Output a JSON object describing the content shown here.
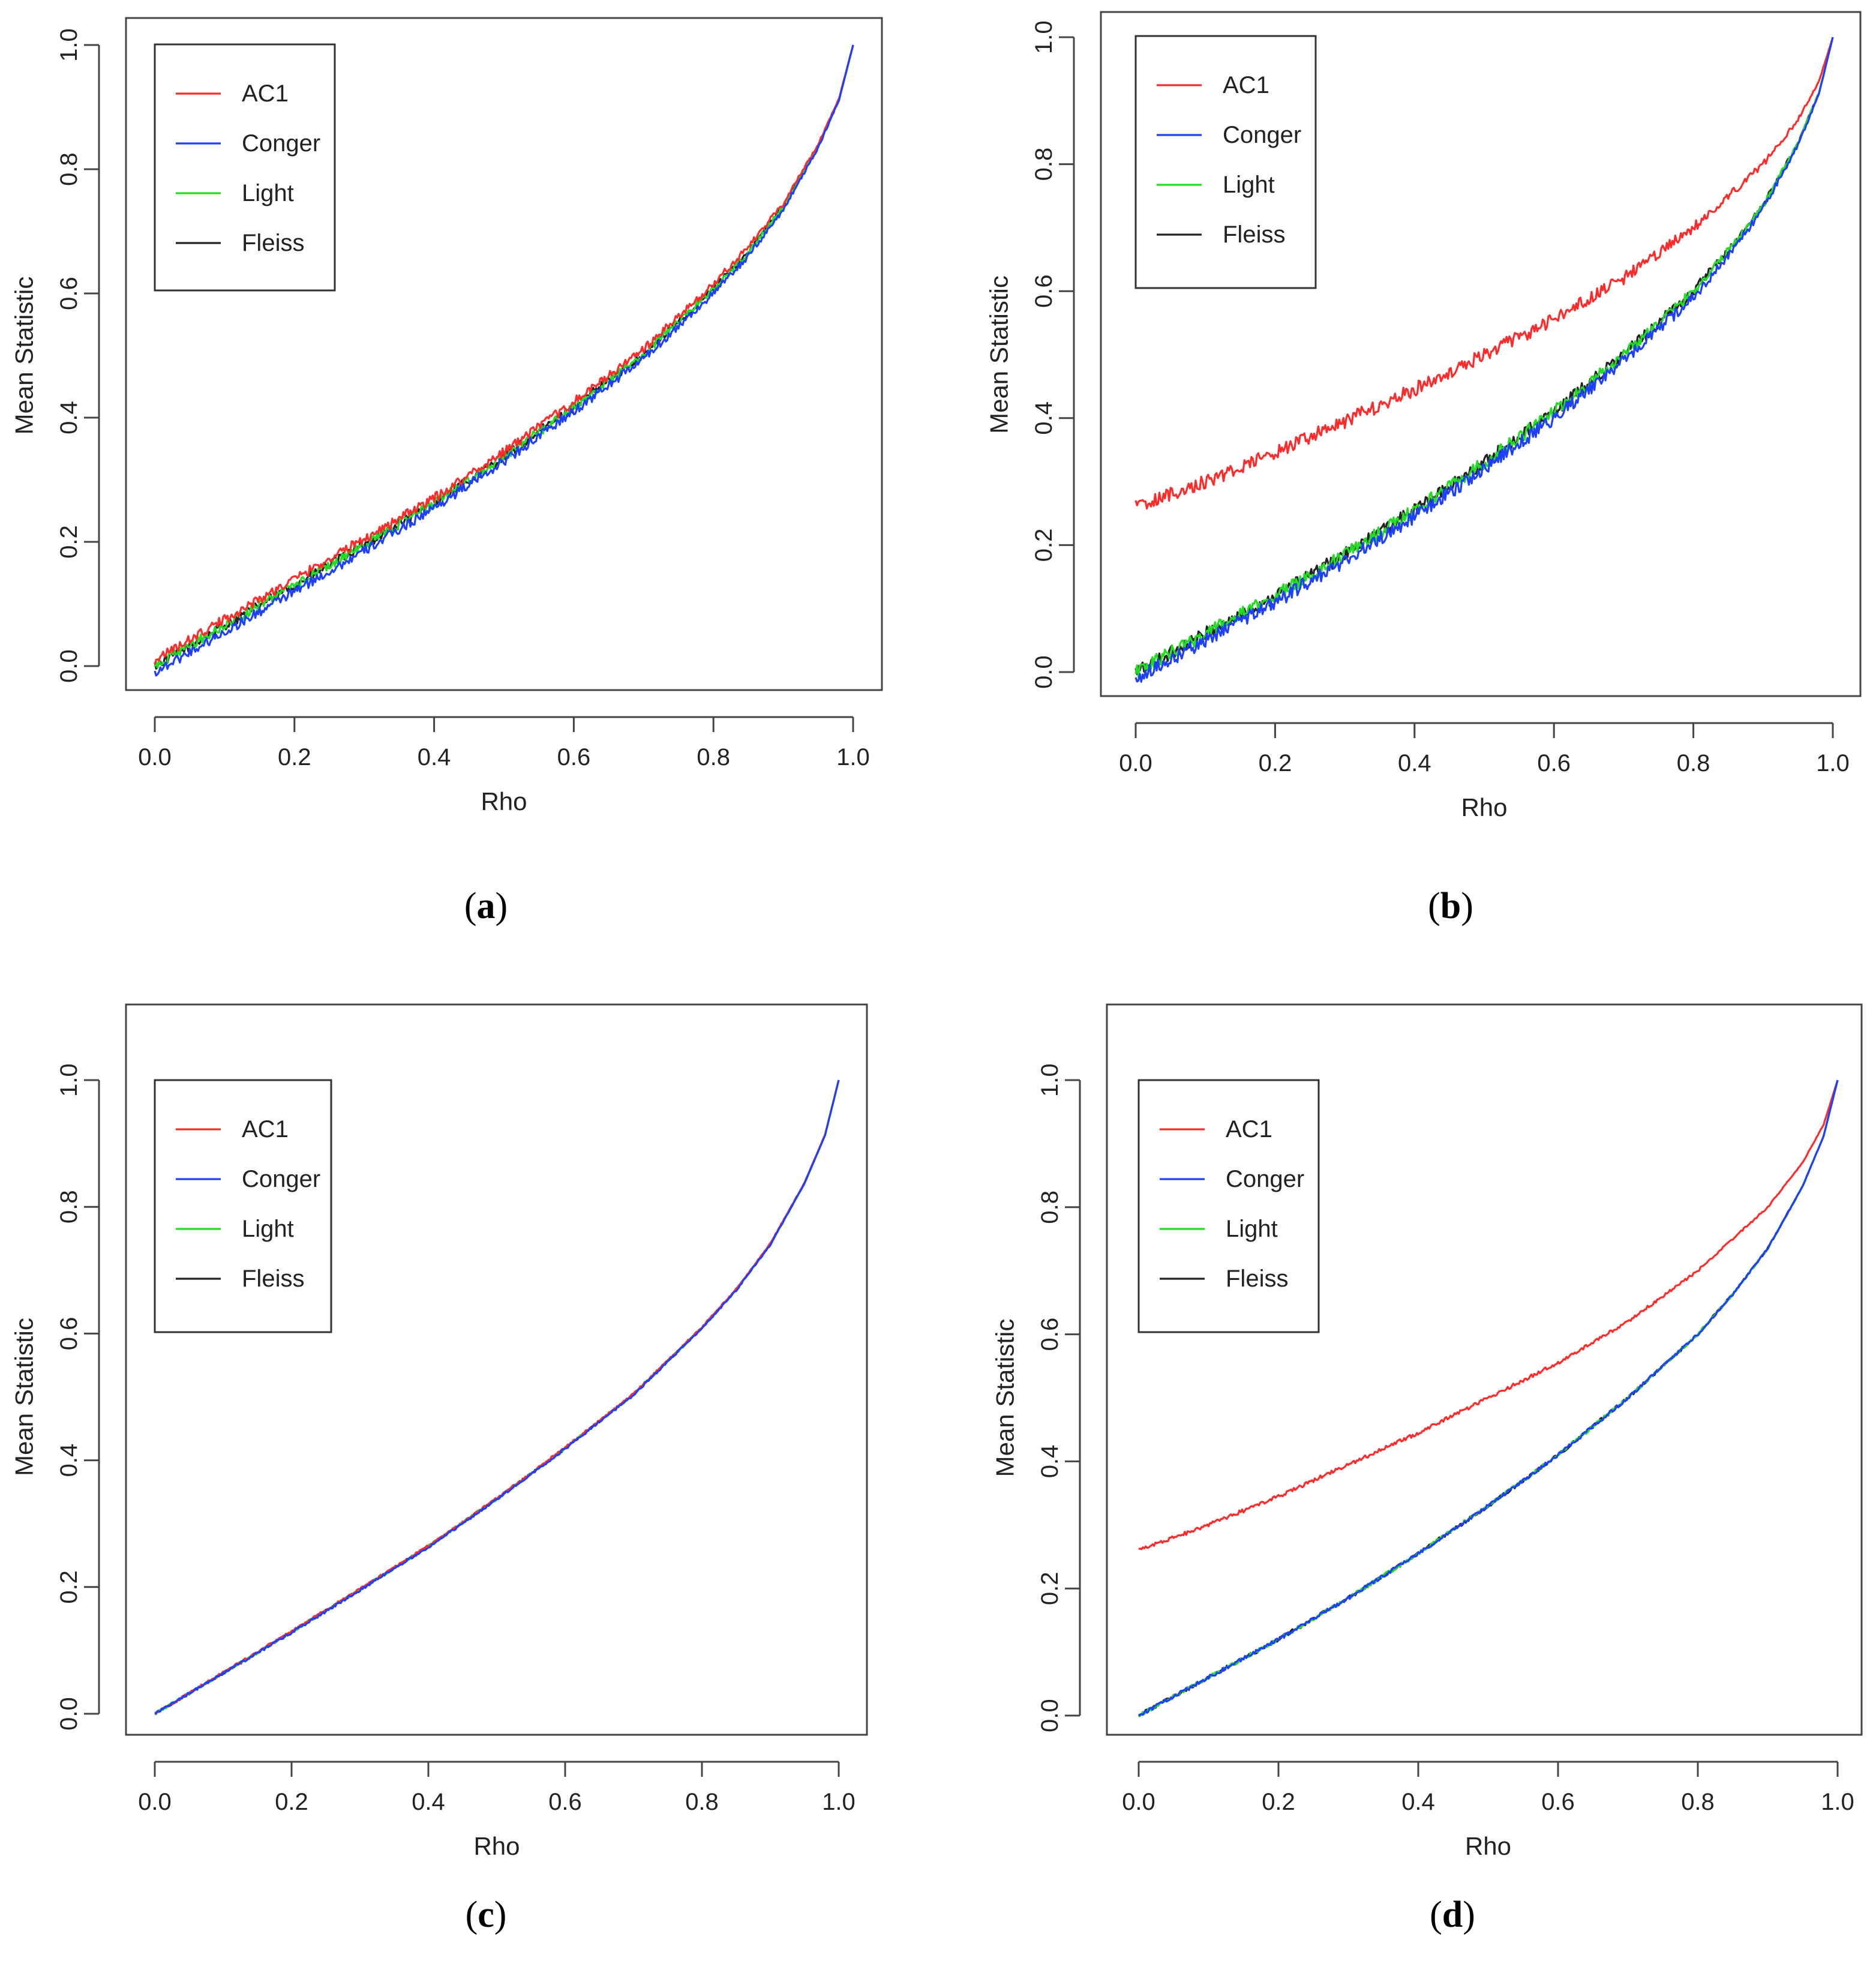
{
  "figure": {
    "panels": [
      {
        "caption_letter": "a",
        "caption_open": "(",
        "caption_close": ")"
      },
      {
        "caption_letter": "b",
        "caption_open": "(",
        "caption_close": ")"
      },
      {
        "caption_letter": "c",
        "caption_open": "(",
        "caption_close": ")"
      },
      {
        "caption_letter": "d",
        "caption_open": "(",
        "caption_close": ")"
      }
    ]
  },
  "colors": {
    "AC1": "#ff2a2a",
    "Conger": "#1f3fff",
    "Light": "#22dd22",
    "Fleiss": "#222222"
  },
  "chart_data": [
    {
      "type": "line",
      "panel": "a",
      "noise": 0.008,
      "xlabel": "Rho",
      "ylabel": "Mean Statistic",
      "xlim": [
        0,
        1
      ],
      "ylim": [
        0,
        1
      ],
      "xticks": [
        "0.0",
        "0.2",
        "0.4",
        "0.6",
        "0.8",
        "1.0"
      ],
      "yticks": [
        "0.0",
        "0.2",
        "0.4",
        "0.6",
        "0.8",
        "1.0"
      ],
      "legend": [
        "AC1",
        "Conger",
        "Light",
        "Fleiss"
      ],
      "legend_position": "top-left",
      "x": [
        0,
        0.1,
        0.2,
        0.3,
        0.4,
        0.5,
        0.6,
        0.7,
        0.8,
        0.85,
        0.9,
        0.95,
        0.98,
        1.0
      ],
      "series": [
        {
          "name": "AC1",
          "values": [
            0.01,
            0.075,
            0.14,
            0.205,
            0.27,
            0.345,
            0.425,
            0.51,
            0.615,
            0.675,
            0.745,
            0.84,
            0.915,
            1.0
          ]
        },
        {
          "name": "Conger",
          "values": [
            -0.01,
            0.055,
            0.12,
            0.185,
            0.255,
            0.33,
            0.41,
            0.495,
            0.6,
            0.66,
            0.735,
            0.835,
            0.912,
            1.0
          ]
        },
        {
          "name": "Light",
          "values": [
            0.0,
            0.065,
            0.13,
            0.195,
            0.262,
            0.337,
            0.417,
            0.502,
            0.607,
            0.667,
            0.74,
            0.837,
            0.913,
            1.0
          ]
        },
        {
          "name": "Fleiss",
          "values": [
            0.0,
            0.065,
            0.13,
            0.195,
            0.262,
            0.337,
            0.417,
            0.502,
            0.607,
            0.667,
            0.74,
            0.837,
            0.913,
            1.0
          ]
        }
      ]
    },
    {
      "type": "line",
      "panel": "b",
      "noise": 0.011,
      "xlabel": "Rho",
      "ylabel": "Mean Statistic",
      "xlim": [
        0,
        1
      ],
      "ylim": [
        0,
        1
      ],
      "xticks": [
        "0.0",
        "0.2",
        "0.4",
        "0.6",
        "0.8",
        "1.0"
      ],
      "yticks": [
        "0.0",
        "0.2",
        "0.4",
        "0.6",
        "0.8",
        "1.0"
      ],
      "legend": [
        "AC1",
        "Conger",
        "Light",
        "Fleiss"
      ],
      "legend_position": "top-left",
      "x": [
        0,
        0.1,
        0.2,
        0.3,
        0.4,
        0.5,
        0.6,
        0.7,
        0.8,
        0.85,
        0.9,
        0.95,
        0.98,
        1.0
      ],
      "series": [
        {
          "name": "AC1",
          "values": [
            0.26,
            0.3,
            0.345,
            0.395,
            0.445,
            0.5,
            0.555,
            0.62,
            0.7,
            0.75,
            0.8,
            0.87,
            0.93,
            1.0
          ]
        },
        {
          "name": "Conger",
          "values": [
            -0.01,
            0.05,
            0.11,
            0.175,
            0.245,
            0.32,
            0.4,
            0.49,
            0.59,
            0.655,
            0.73,
            0.83,
            0.91,
            1.0
          ]
        },
        {
          "name": "Light",
          "values": [
            0.0,
            0.06,
            0.12,
            0.185,
            0.255,
            0.33,
            0.41,
            0.5,
            0.6,
            0.663,
            0.735,
            0.833,
            0.912,
            1.0
          ]
        },
        {
          "name": "Fleiss",
          "values": [
            0.0,
            0.06,
            0.12,
            0.185,
            0.255,
            0.33,
            0.41,
            0.5,
            0.6,
            0.663,
            0.735,
            0.833,
            0.912,
            1.0
          ]
        }
      ]
    },
    {
      "type": "line",
      "panel": "c",
      "noise": 0.002,
      "xlabel": "Rho",
      "ylabel": "Mean Statistic",
      "xlim": [
        0,
        1
      ],
      "ylim": [
        0,
        1
      ],
      "xticks": [
        "0.0",
        "0.2",
        "0.4",
        "0.6",
        "0.8",
        "1.0"
      ],
      "yticks": [
        "0.0",
        "0.2",
        "0.4",
        "0.6",
        "0.8",
        "1.0"
      ],
      "legend": [
        "AC1",
        "Conger",
        "Light",
        "Fleiss"
      ],
      "legend_position": "top-left",
      "x": [
        0,
        0.1,
        0.2,
        0.3,
        0.4,
        0.5,
        0.6,
        0.7,
        0.8,
        0.85,
        0.9,
        0.95,
        0.98,
        1.0
      ],
      "series": [
        {
          "name": "AC1",
          "values": [
            0.0,
            0.065,
            0.13,
            0.197,
            0.265,
            0.34,
            0.42,
            0.505,
            0.61,
            0.67,
            0.742,
            0.838,
            0.914,
            1.0
          ]
        },
        {
          "name": "Conger",
          "values": [
            0.0,
            0.064,
            0.128,
            0.195,
            0.263,
            0.338,
            0.418,
            0.503,
            0.608,
            0.668,
            0.74,
            0.837,
            0.913,
            1.0
          ]
        },
        {
          "name": "Light",
          "values": [
            0.0,
            0.064,
            0.129,
            0.196,
            0.264,
            0.339,
            0.419,
            0.504,
            0.609,
            0.669,
            0.741,
            0.837,
            0.913,
            1.0
          ]
        },
        {
          "name": "Fleiss",
          "values": [
            0.0,
            0.064,
            0.129,
            0.196,
            0.264,
            0.339,
            0.419,
            0.504,
            0.609,
            0.669,
            0.741,
            0.837,
            0.913,
            1.0
          ]
        }
      ]
    },
    {
      "type": "line",
      "panel": "d",
      "noise": 0.003,
      "xlabel": "Rho",
      "ylabel": "Mean Statistic",
      "xlim": [
        0,
        1
      ],
      "ylim": [
        0,
        1
      ],
      "xticks": [
        "0.0",
        "0.2",
        "0.4",
        "0.6",
        "0.8",
        "1.0"
      ],
      "yticks": [
        "0.0",
        "0.2",
        "0.4",
        "0.6",
        "0.8",
        "1.0"
      ],
      "legend": [
        "AC1",
        "Conger",
        "Light",
        "Fleiss"
      ],
      "legend_position": "top-left",
      "x": [
        0,
        0.1,
        0.2,
        0.3,
        0.4,
        0.5,
        0.6,
        0.7,
        0.8,
        0.85,
        0.9,
        0.95,
        0.98,
        1.0
      ],
      "series": [
        {
          "name": "AC1",
          "values": [
            0.26,
            0.3,
            0.345,
            0.395,
            0.445,
            0.5,
            0.555,
            0.62,
            0.7,
            0.75,
            0.8,
            0.87,
            0.93,
            1.0
          ]
        },
        {
          "name": "Conger",
          "values": [
            0.0,
            0.06,
            0.12,
            0.185,
            0.255,
            0.33,
            0.41,
            0.5,
            0.6,
            0.663,
            0.735,
            0.833,
            0.912,
            1.0
          ]
        },
        {
          "name": "Light",
          "values": [
            0.0,
            0.06,
            0.12,
            0.185,
            0.255,
            0.33,
            0.41,
            0.5,
            0.6,
            0.663,
            0.735,
            0.833,
            0.912,
            1.0
          ]
        },
        {
          "name": "Fleiss",
          "values": [
            0.0,
            0.06,
            0.12,
            0.185,
            0.255,
            0.33,
            0.41,
            0.5,
            0.6,
            0.663,
            0.735,
            0.833,
            0.912,
            1.0
          ]
        }
      ]
    }
  ]
}
